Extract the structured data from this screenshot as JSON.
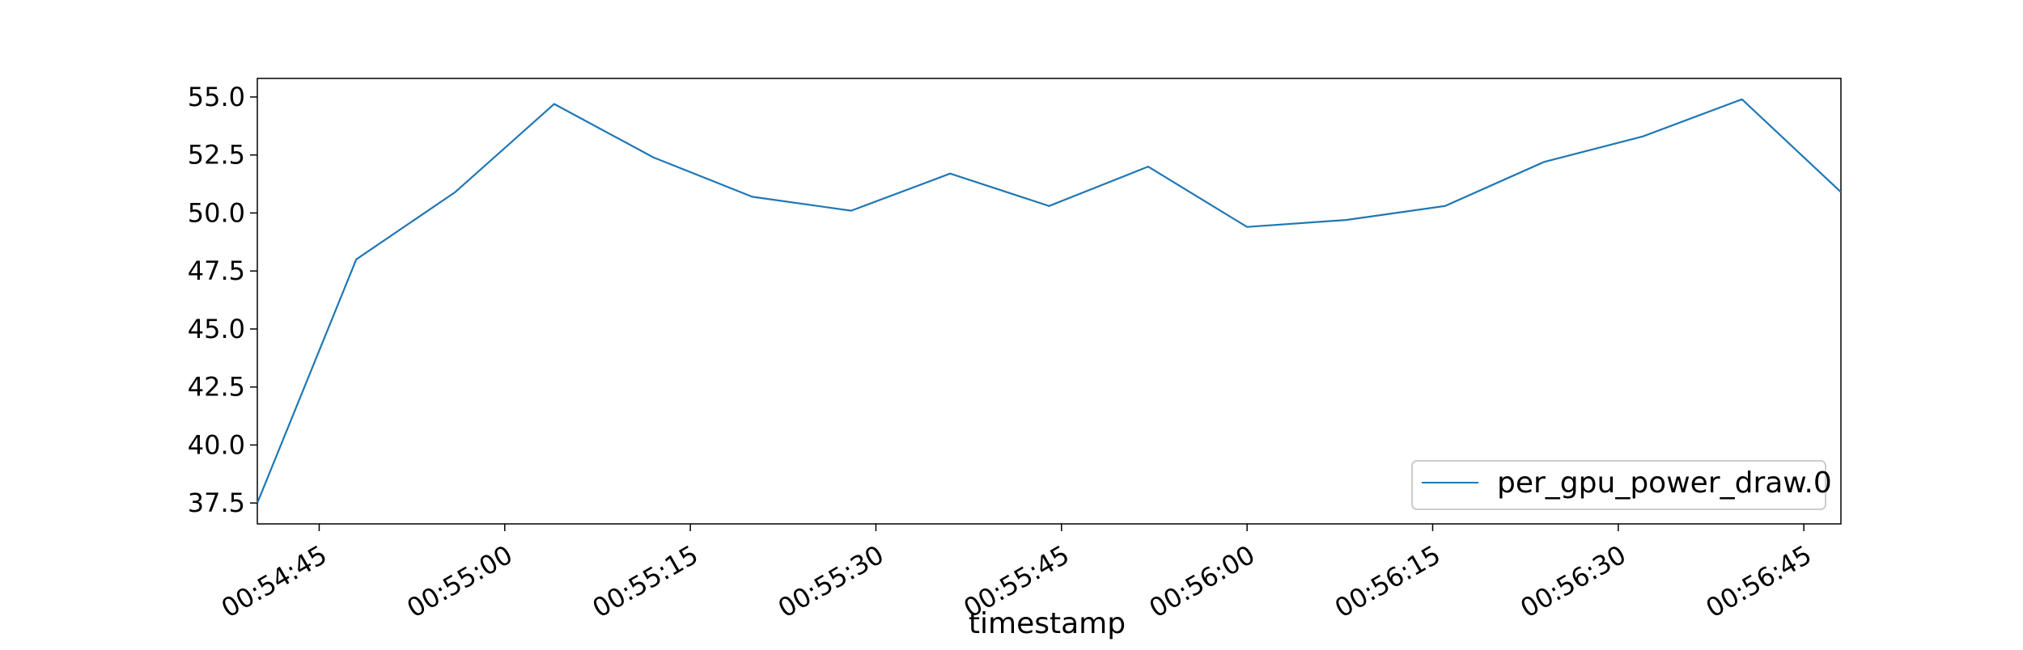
{
  "chart_data": {
    "type": "line",
    "title": "",
    "xlabel": "timestamp",
    "ylabel": "",
    "x": [
      "00:54:40",
      "00:54:48",
      "00:54:56",
      "00:55:04",
      "00:55:12",
      "00:55:20",
      "00:55:28",
      "00:55:36",
      "00:55:44",
      "00:55:52",
      "00:56:00",
      "00:56:08",
      "00:56:16",
      "00:56:24",
      "00:56:32",
      "00:56:40",
      "00:56:48"
    ],
    "series": [
      {
        "name": "per_gpu_power_draw.0",
        "color": "#1f77b4",
        "values": [
          37.5,
          48.0,
          50.9,
          54.7,
          52.4,
          50.7,
          50.1,
          51.7,
          50.3,
          52.0,
          49.4,
          49.7,
          50.3,
          52.2,
          53.3,
          54.9,
          50.9
        ]
      }
    ],
    "xlim": [
      "00:54:40",
      "00:56:48"
    ],
    "ylim": [
      36.6,
      55.8
    ],
    "xticks": [
      "00:54:45",
      "00:55:00",
      "00:55:15",
      "00:55:30",
      "00:55:45",
      "00:56:00",
      "00:56:15",
      "00:56:30",
      "00:56:45"
    ],
    "yticks": [
      37.5,
      40.0,
      42.5,
      45.0,
      47.5,
      50.0,
      52.5,
      55.0
    ],
    "ytick_labels": [
      "37.5",
      "40.0",
      "42.5",
      "45.0",
      "47.5",
      "50.0",
      "52.5",
      "55.0"
    ],
    "grid": false,
    "legend_position": "lower right"
  }
}
